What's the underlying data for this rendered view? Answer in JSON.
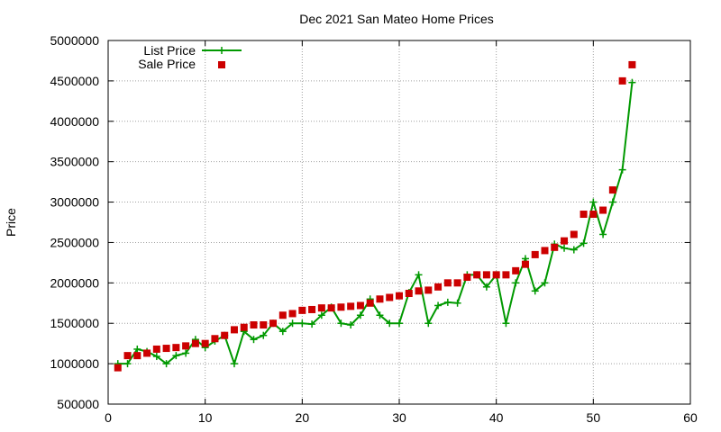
{
  "chart_data": {
    "type": "line",
    "title": "Dec 2021 San Mateo Home Prices",
    "xlabel": "",
    "ylabel": "Price",
    "xlim": [
      0,
      60
    ],
    "ylim": [
      500000,
      5000000
    ],
    "x_ticks": [
      0,
      10,
      20,
      30,
      40,
      50,
      60
    ],
    "y_ticks": [
      500000,
      1000000,
      1500000,
      2000000,
      2500000,
      3000000,
      3500000,
      4000000,
      4500000,
      5000000
    ],
    "grid": true,
    "legend_position": "top-left",
    "series": [
      {
        "name": "List Price",
        "style": "line-plus",
        "color": "#009900",
        "x": [
          1,
          2,
          3,
          4,
          5,
          6,
          7,
          8,
          9,
          10,
          11,
          12,
          13,
          14,
          15,
          16,
          17,
          18,
          19,
          20,
          21,
          22,
          23,
          24,
          25,
          26,
          27,
          28,
          29,
          30,
          31,
          32,
          33,
          34,
          35,
          36,
          37,
          38,
          39,
          40,
          41,
          42,
          43,
          44,
          45,
          46,
          47,
          48,
          49,
          50,
          51,
          52,
          53,
          54
        ],
        "values": [
          1000000,
          1000000,
          1180000,
          1150000,
          1090000,
          1000000,
          1100000,
          1130000,
          1300000,
          1200000,
          1280000,
          1350000,
          1000000,
          1400000,
          1300000,
          1350000,
          1500000,
          1400000,
          1500000,
          1500000,
          1490000,
          1600000,
          1700000,
          1500000,
          1480000,
          1600000,
          1800000,
          1600000,
          1500000,
          1500000,
          1880000,
          2100000,
          1500000,
          1720000,
          1760000,
          1750000,
          2100000,
          2100000,
          1950000,
          2100000,
          1500000,
          2000000,
          2300000,
          1900000,
          2000000,
          2480000,
          2430000,
          2410000,
          2490000,
          3000000,
          2600000,
          3000000,
          3400000,
          4480000
        ]
      },
      {
        "name": "Sale Price",
        "style": "points-square",
        "color": "#cc0000",
        "x": [
          1,
          2,
          3,
          4,
          5,
          6,
          7,
          8,
          9,
          10,
          11,
          12,
          13,
          14,
          15,
          16,
          17,
          18,
          19,
          20,
          21,
          22,
          23,
          24,
          25,
          26,
          27,
          28,
          29,
          30,
          31,
          32,
          33,
          34,
          35,
          36,
          37,
          38,
          39,
          40,
          41,
          42,
          43,
          44,
          45,
          46,
          47,
          48,
          49,
          50,
          51,
          52,
          53,
          54
        ],
        "values": [
          950000,
          1100000,
          1100000,
          1130000,
          1180000,
          1190000,
          1200000,
          1220000,
          1250000,
          1250000,
          1310000,
          1350000,
          1420000,
          1450000,
          1480000,
          1480000,
          1500000,
          1600000,
          1620000,
          1660000,
          1670000,
          1690000,
          1690000,
          1700000,
          1710000,
          1720000,
          1750000,
          1800000,
          1820000,
          1840000,
          1870000,
          1900000,
          1910000,
          1950000,
          2000000,
          2000000,
          2070000,
          2100000,
          2100000,
          2100000,
          2100000,
          2150000,
          2230000,
          2350000,
          2400000,
          2440000,
          2520000,
          2600000,
          2850000,
          2850000,
          2900000,
          3150000,
          4500000,
          4700000
        ]
      }
    ]
  }
}
